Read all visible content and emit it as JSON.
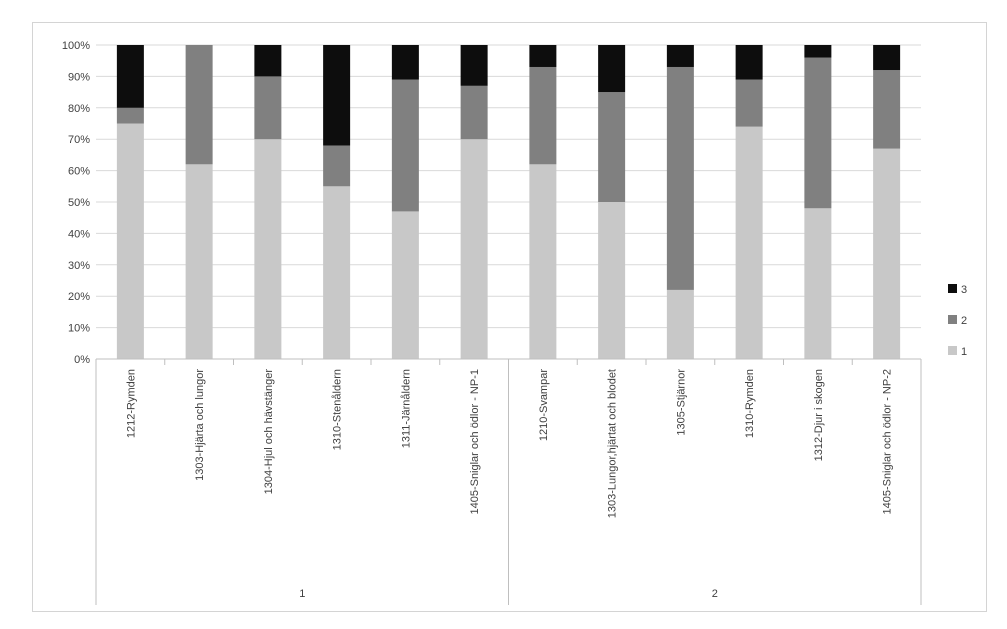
{
  "chart_data": {
    "type": "bar",
    "stacked": true,
    "normalized": true,
    "title": "",
    "xlabel": "",
    "ylabel": "",
    "ylim": [
      0,
      100
    ],
    "yticks": [
      "0%",
      "10%",
      "20%",
      "30%",
      "40%",
      "50%",
      "60%",
      "70%",
      "80%",
      "90%",
      "100%"
    ],
    "grid": true,
    "legend_position": "right",
    "groups": [
      {
        "label": "1",
        "categories": [
          "1212-Rymden",
          "1303-Hjärta och lungor",
          "1304-Hjul och hävstänger",
          "1310-Stenåldern",
          "1311-Järnåldern",
          "1405-Sniglar och ödlor - NP-1"
        ]
      },
      {
        "label": "2",
        "categories": [
          "1210-Svampar",
          "1303-Lungor,hjärtat och blodet",
          "1305-Stjärnor",
          "1310-Rymden",
          "1312-Djur i skogen",
          "1405-Sniglar och ödlor - NP-2"
        ]
      }
    ],
    "categories": [
      "1212-Rymden",
      "1303-Hjärta och lungor",
      "1304-Hjul och hävstänger",
      "1310-Stenåldern",
      "1311-Järnåldern",
      "1405-Sniglar och ödlor - NP-1",
      "1210-Svampar",
      "1303-Lungor,hjärtat och blodet",
      "1305-Stjärnor",
      "1310-Rymden",
      "1312-Djur i skogen",
      "1405-Sniglar och ödlor - NP-2"
    ],
    "series": [
      {
        "name": "1",
        "color": "#c8c8c8",
        "values": [
          75,
          62,
          70,
          55,
          47,
          70,
          62,
          50,
          22,
          74,
          48,
          67
        ]
      },
      {
        "name": "2",
        "color": "#808080",
        "values": [
          5,
          38,
          20,
          13,
          42,
          17,
          31,
          35,
          71,
          15,
          48,
          25
        ]
      },
      {
        "name": "3",
        "color": "#0d0d0d",
        "values": [
          20,
          0,
          10,
          32,
          11,
          13,
          7,
          15,
          7,
          11,
          4,
          8
        ]
      }
    ]
  }
}
